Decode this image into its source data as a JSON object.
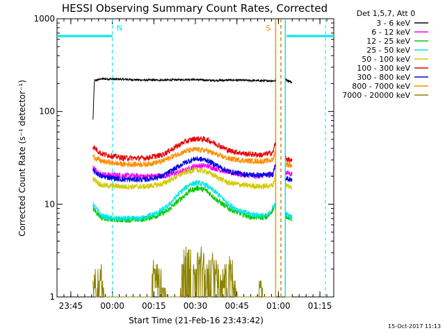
{
  "chart_data": {
    "type": "line",
    "title": "HESSI Observing Summary Count Rates, Corrected",
    "xlabel": "Start Time (21-Feb-16 23:43:42)",
    "ylabel": "Corrected Count Rate (s⁻¹ detector⁻¹)",
    "yscale": "log",
    "ylim": [
      1,
      1000
    ],
    "xlim_minutes_from_23_40": [
      0,
      100
    ],
    "x_ticks": [
      {
        "label": "23:45",
        "minute": 5
      },
      {
        "label": "00:00",
        "minute": 20
      },
      {
        "label": "00:15",
        "minute": 35
      },
      {
        "label": "00:30",
        "minute": 50
      },
      {
        "label": "00:45",
        "minute": 65
      },
      {
        "label": "01:00",
        "minute": 80
      },
      {
        "label": "01:15",
        "minute": 95
      }
    ],
    "y_ticks": [
      {
        "label": "1",
        "value": 1
      },
      {
        "label": "10",
        "value": 10
      },
      {
        "label": "100",
        "value": 100
      },
      {
        "label": "1000",
        "value": 1000
      }
    ],
    "legend_header": "Det 1,5,7, Att 0",
    "legend_position": "top-right outside plot",
    "grid": false,
    "data_gap_minutes": [
      79,
      82.5
    ],
    "series": [
      {
        "name": "3 - 6 keV",
        "color": "#000000",
        "points": [
          [
            13,
            80
          ],
          [
            13.5,
            215
          ],
          [
            16,
            225
          ],
          [
            24,
            222
          ],
          [
            32,
            218
          ],
          [
            40,
            218
          ],
          [
            48,
            222
          ],
          [
            56,
            216
          ],
          [
            64,
            218
          ],
          [
            72,
            215
          ],
          [
            78.8,
            214
          ],
          [
            82.8,
            220
          ],
          [
            85,
            205
          ]
        ]
      },
      {
        "name": "6 - 12 keV",
        "color": "#ee00ee",
        "points": [
          [
            13,
            25
          ],
          [
            16,
            21
          ],
          [
            24,
            20.5
          ],
          [
            32,
            20
          ],
          [
            40,
            20.5
          ],
          [
            46,
            23
          ],
          [
            50,
            26
          ],
          [
            54,
            26
          ],
          [
            60,
            23
          ],
          [
            66,
            21
          ],
          [
            72,
            20
          ],
          [
            78,
            21
          ],
          [
            78.8,
            26
          ],
          [
            82.8,
            22
          ],
          [
            85,
            21
          ]
        ]
      },
      {
        "name": "12 - 25 keV",
        "color": "#00c800",
        "points": [
          [
            13,
            9
          ],
          [
            16,
            7.2
          ],
          [
            20,
            6.8
          ],
          [
            24,
            6.8
          ],
          [
            30,
            6.8
          ],
          [
            36,
            7.5
          ],
          [
            40,
            8.5
          ],
          [
            44,
            11
          ],
          [
            48,
            14
          ],
          [
            51,
            15
          ],
          [
            54,
            14
          ],
          [
            58,
            11
          ],
          [
            62,
            9
          ],
          [
            66,
            8
          ],
          [
            70,
            7.3
          ],
          [
            76,
            7.2
          ],
          [
            78.8,
            9.5
          ],
          [
            82.8,
            7.5
          ],
          [
            85,
            6.8
          ]
        ]
      },
      {
        "name": "25 - 50 keV",
        "color": "#00e6e6",
        "points": [
          [
            13,
            10
          ],
          [
            16,
            7.5
          ],
          [
            20,
            7
          ],
          [
            24,
            7
          ],
          [
            30,
            7
          ],
          [
            36,
            8
          ],
          [
            40,
            9.5
          ],
          [
            44,
            13
          ],
          [
            48,
            16.5
          ],
          [
            51,
            17
          ],
          [
            54,
            16
          ],
          [
            58,
            13
          ],
          [
            62,
            10
          ],
          [
            66,
            8.5
          ],
          [
            70,
            7.8
          ],
          [
            76,
            7.5
          ],
          [
            78.8,
            10
          ],
          [
            82.8,
            7.8
          ],
          [
            85,
            7.2
          ]
        ]
      },
      {
        "name": "50 - 100 keV",
        "color": "#d2c800",
        "points": [
          [
            13,
            19
          ],
          [
            16,
            16
          ],
          [
            24,
            15.5
          ],
          [
            32,
            15.5
          ],
          [
            38,
            16.5
          ],
          [
            42,
            19
          ],
          [
            46,
            22
          ],
          [
            50,
            23.5
          ],
          [
            54,
            22.5
          ],
          [
            58,
            19.5
          ],
          [
            62,
            17
          ],
          [
            68,
            16
          ],
          [
            74,
            15.5
          ],
          [
            78,
            16
          ],
          [
            78.8,
            20
          ],
          [
            82.8,
            16
          ],
          [
            85,
            15
          ]
        ]
      },
      {
        "name": "100 - 300 keV",
        "color": "#e60000",
        "points": [
          [
            13,
            42
          ],
          [
            16,
            35
          ],
          [
            24,
            31.5
          ],
          [
            32,
            31.5
          ],
          [
            38,
            34
          ],
          [
            42,
            40
          ],
          [
            46,
            47
          ],
          [
            50,
            51
          ],
          [
            54,
            50
          ],
          [
            58,
            44
          ],
          [
            62,
            38
          ],
          [
            68,
            35
          ],
          [
            74,
            34
          ],
          [
            78,
            36
          ],
          [
            78.8,
            45
          ],
          [
            82.8,
            31
          ],
          [
            85,
            29
          ]
        ]
      },
      {
        "name": "300 - 800 keV",
        "color": "#0000e6",
        "points": [
          [
            13,
            23
          ],
          [
            16,
            20
          ],
          [
            24,
            18.5
          ],
          [
            32,
            18.5
          ],
          [
            38,
            20
          ],
          [
            42,
            23.5
          ],
          [
            46,
            28
          ],
          [
            50,
            31
          ],
          [
            54,
            30
          ],
          [
            58,
            26
          ],
          [
            62,
            22.5
          ],
          [
            68,
            21
          ],
          [
            74,
            20.5
          ],
          [
            78,
            21
          ],
          [
            78.8,
            27
          ],
          [
            82.8,
            19
          ],
          [
            85,
            18
          ]
        ]
      },
      {
        "name": "800 - 7000 keV",
        "color": "#ff8c00",
        "points": [
          [
            13,
            33
          ],
          [
            16,
            29
          ],
          [
            24,
            27
          ],
          [
            32,
            27
          ],
          [
            38,
            29
          ],
          [
            42,
            33
          ],
          [
            46,
            37
          ],
          [
            50,
            39
          ],
          [
            54,
            38
          ],
          [
            58,
            34
          ],
          [
            62,
            31
          ],
          [
            68,
            29.5
          ],
          [
            74,
            29
          ],
          [
            78,
            30
          ],
          [
            78.8,
            37
          ],
          [
            82.8,
            27
          ],
          [
            85,
            26
          ]
        ]
      },
      {
        "name": "7000 - 20000 keV",
        "color": "#8c8200",
        "points": [
          [
            13,
            2
          ],
          [
            14,
            1.6
          ],
          [
            16,
            2
          ],
          [
            17,
            1
          ],
          [
            34,
            1
          ],
          [
            34.5,
            2
          ],
          [
            36,
            2
          ],
          [
            37,
            1.8
          ],
          [
            40,
            1
          ],
          [
            44.5,
            1
          ],
          [
            45,
            2
          ],
          [
            46,
            2.8
          ],
          [
            48,
            3
          ],
          [
            50,
            2.5
          ],
          [
            52,
            3
          ],
          [
            54,
            2
          ],
          [
            56,
            2.6
          ],
          [
            58,
            2
          ],
          [
            59,
            1.5
          ],
          [
            62,
            2.4
          ],
          [
            64,
            2
          ],
          [
            65,
            1
          ],
          [
            72,
            1
          ],
          [
            73,
            1.8
          ],
          [
            75,
            1
          ],
          [
            85,
            1
          ]
        ]
      }
    ],
    "annotations": [
      {
        "label": "N",
        "color": "#00e6e6",
        "minute": 20
      },
      {
        "label": "S",
        "color": "#ff8c00",
        "minute": 79
      }
    ],
    "saa_night_bars": [
      {
        "type": "cyan-bar",
        "from_minute": 0,
        "to_minute": 20,
        "value": 650
      },
      {
        "type": "cyan-bar",
        "from_minute": 83,
        "to_minute": 100,
        "value": 650
      }
    ],
    "vertical_markers": [
      {
        "minute": 20,
        "color": "#00e6e6",
        "dashed": true
      },
      {
        "minute": 81,
        "color": "#00e6e6",
        "dashed": true
      },
      {
        "minute": 82.5,
        "color": "#00e6e6",
        "dashed": false
      },
      {
        "minute": 97,
        "color": "#00e6e6",
        "dashed": true
      },
      {
        "minute": 79,
        "color": "#ff8c00",
        "dashed": false
      },
      {
        "minute": 80.8,
        "color": "#ff8c00",
        "dashed": true
      }
    ]
  },
  "footer": {
    "timestamp": "15-Oct-2017 11:13"
  }
}
